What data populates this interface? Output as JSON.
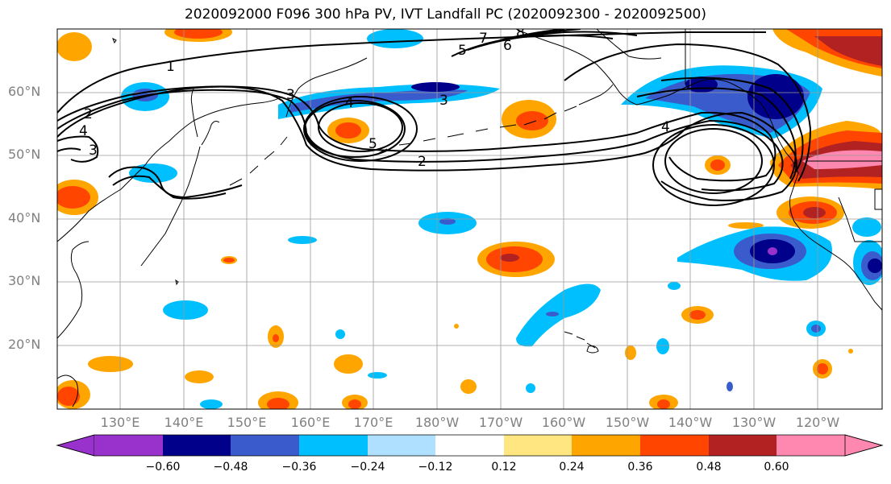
{
  "title": "2020092000 F096 300 hPa PV, IVT Landfall PC (2020092300 - 2020092500)",
  "lat_labels": [
    "60°N",
    "50°N",
    "40°N",
    "30°N",
    "20°N"
  ],
  "lon_labels": [
    "130°E",
    "140°E",
    "150°E",
    "160°E",
    "170°E",
    "180°W",
    "170°W",
    "160°W",
    "150°W",
    "140°W",
    "130°W",
    "120°W"
  ],
  "contour_labels": [
    "1",
    "2",
    "3",
    "4",
    "5",
    "6",
    "7",
    "8"
  ],
  "colorbar": {
    "ticks": [
      "−0.60",
      "−0.48",
      "−0.36",
      "−0.24",
      "−0.12",
      "0.12",
      "0.24",
      "0.36",
      "0.48",
      "0.60"
    ],
    "colors": [
      "#9932cc",
      "#00008b",
      "#3a5bcc",
      "#00bfff",
      "#b0e0ff",
      "#ffffff",
      "#ffe680",
      "#ffa500",
      "#ff4500",
      "#b22222",
      "#ff88b0"
    ]
  },
  "chart_data": {
    "type": "map",
    "region": "North Pacific",
    "lat_range": [
      "10°N",
      "70°N"
    ],
    "lon_range": [
      "120°E",
      "110°W"
    ],
    "contour_field": "300 hPa PV",
    "contour_levels": [
      1,
      2,
      3,
      4,
      5,
      6,
      7,
      8
    ],
    "shaded_field": "IVT Landfall PC",
    "shading_levels": [
      -0.6,
      -0.48,
      -0.36,
      -0.24,
      -0.12,
      0.12,
      0.24,
      0.36,
      0.48,
      0.6
    ]
  }
}
